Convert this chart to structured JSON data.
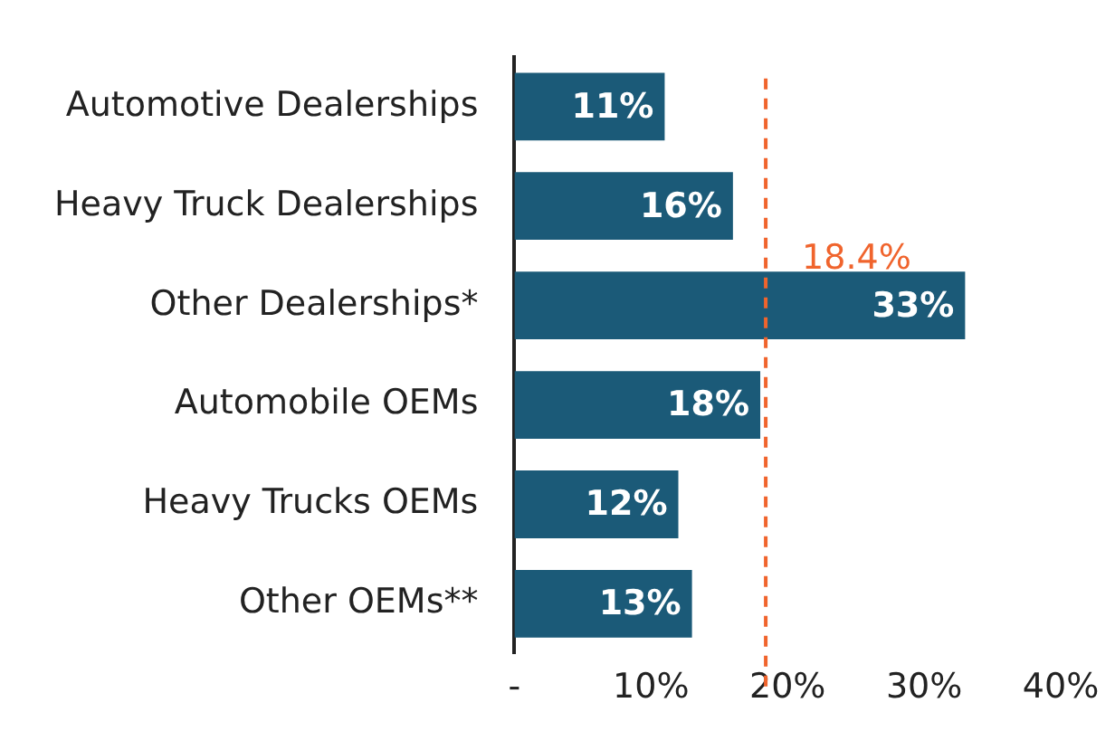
{
  "chart_data": {
    "type": "bar",
    "orientation": "horizontal",
    "categories": [
      "Automotive Dealerships",
      "Heavy Truck Dealerships",
      "Other Dealerships*",
      "Automobile OEMs",
      "Heavy Trucks OEMs",
      "Other OEMs**"
    ],
    "values": [
      11,
      16,
      33,
      18,
      12,
      13
    ],
    "value_labels": [
      "11%",
      "16%",
      "33%",
      "18%",
      "12%",
      "13%"
    ],
    "color": "#1b5a78",
    "xlim": [
      0,
      40
    ],
    "xticks": [
      {
        "value": 0,
        "label": "-"
      },
      {
        "value": 10,
        "label": "10%"
      },
      {
        "value": 20,
        "label": "20%"
      },
      {
        "value": 30,
        "label": "30%"
      },
      {
        "value": 40,
        "label": "40%"
      }
    ],
    "ref_lines": [
      {
        "axis": "x",
        "value": 18.4,
        "label": "18.4%",
        "color": "#f0642d",
        "line_style": "dashed"
      }
    ],
    "grid": false,
    "legend": false
  }
}
